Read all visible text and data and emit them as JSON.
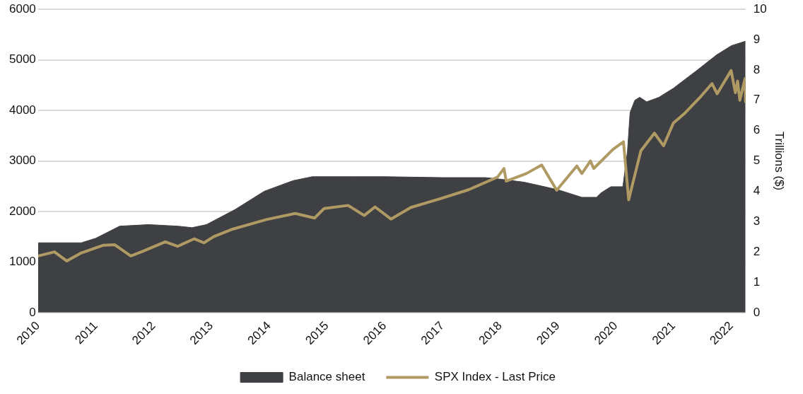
{
  "chart_data": {
    "type": "area",
    "y2label": "Trillions ($)",
    "legend": "bottom",
    "grid": "y",
    "xlim": [
      "2010-01-01",
      "2022-04-01"
    ],
    "xticks": [
      "2010",
      "2011",
      "2012",
      "2013",
      "2014",
      "2015",
      "2016",
      "2017",
      "2018",
      "2019",
      "2020",
      "2021",
      "2022"
    ],
    "ylim": [
      0,
      6000
    ],
    "yticks": [
      0,
      1000,
      2000,
      3000,
      4000,
      5000,
      6000
    ],
    "y2lim": [
      0,
      10
    ],
    "y2ticks": [
      0,
      1,
      2,
      3,
      4,
      5,
      6,
      7,
      8,
      9,
      10
    ],
    "series": [
      {
        "name": "Balance sheet",
        "axis": "y2",
        "color": "#3f4043",
        "x": [
          "2010-01-01",
          "2010-10-01",
          "2011-01-01",
          "2011-06-01",
          "2011-12-01",
          "2012-06-01",
          "2012-09-01",
          "2012-12-01",
          "2013-06-01",
          "2013-12-01",
          "2014-06-01",
          "2014-10-01",
          "2015-06-01",
          "2016-01-01",
          "2017-01-01",
          "2017-10-01",
          "2018-01-01",
          "2018-06-01",
          "2019-01-01",
          "2019-06-01",
          "2019-09-01",
          "2019-10-01",
          "2019-12-01",
          "2020-02-15",
          "2020-03-15",
          "2020-04-01",
          "2020-05-01",
          "2020-06-01",
          "2020-07-15",
          "2020-10-01",
          "2021-01-01",
          "2021-06-01",
          "2021-10-01",
          "2022-01-01",
          "2022-04-01"
        ],
        "values": [
          2.3,
          2.3,
          2.45,
          2.85,
          2.9,
          2.85,
          2.8,
          2.9,
          3.4,
          4.0,
          4.35,
          4.48,
          4.48,
          4.48,
          4.45,
          4.45,
          4.4,
          4.3,
          4.05,
          3.8,
          3.8,
          3.95,
          4.15,
          4.15,
          5.3,
          6.6,
          7.0,
          7.1,
          6.95,
          7.1,
          7.4,
          8.0,
          8.5,
          8.8,
          8.95
        ]
      },
      {
        "name": "SPX Index - Last Price",
        "type": "line",
        "axis": "y",
        "color": "#b09a64",
        "x": [
          "2010-01-01",
          "2010-04-15",
          "2010-07-01",
          "2010-10-01",
          "2011-02-15",
          "2011-05-01",
          "2011-08-10",
          "2011-10-15",
          "2012-03-15",
          "2012-06-01",
          "2012-09-15",
          "2012-11-15",
          "2013-01-15",
          "2013-05-15",
          "2013-12-15",
          "2014-06-15",
          "2014-10-15",
          "2014-12-15",
          "2015-05-15",
          "2015-08-25",
          "2015-11-01",
          "2016-02-10",
          "2016-06-15",
          "2016-12-15",
          "2017-06-15",
          "2017-12-15",
          "2018-01-25",
          "2018-02-08",
          "2018-06-15",
          "2018-09-20",
          "2018-12-24",
          "2019-04-30",
          "2019-06-01",
          "2019-07-25",
          "2019-08-15",
          "2019-12-15",
          "2020-02-19",
          "2020-03-23",
          "2020-06-08",
          "2020-09-02",
          "2020-10-30",
          "2020-12-31",
          "2021-03-15",
          "2021-06-15",
          "2021-09-01",
          "2021-10-04",
          "2021-12-31",
          "2022-01-27",
          "2022-02-10",
          "2022-02-24",
          "2022-03-29",
          "2022-04-01"
        ],
        "values": [
          1120,
          1200,
          1020,
          1180,
          1330,
          1340,
          1120,
          1200,
          1400,
          1310,
          1460,
          1380,
          1500,
          1650,
          1840,
          1960,
          1870,
          2060,
          2120,
          1920,
          2090,
          1850,
          2080,
          2250,
          2430,
          2680,
          2850,
          2600,
          2750,
          2920,
          2420,
          2900,
          2750,
          3000,
          2850,
          3230,
          3380,
          2230,
          3200,
          3550,
          3300,
          3750,
          3950,
          4250,
          4530,
          4330,
          4790,
          4350,
          4580,
          4200,
          4630,
          4170
        ]
      }
    ]
  }
}
